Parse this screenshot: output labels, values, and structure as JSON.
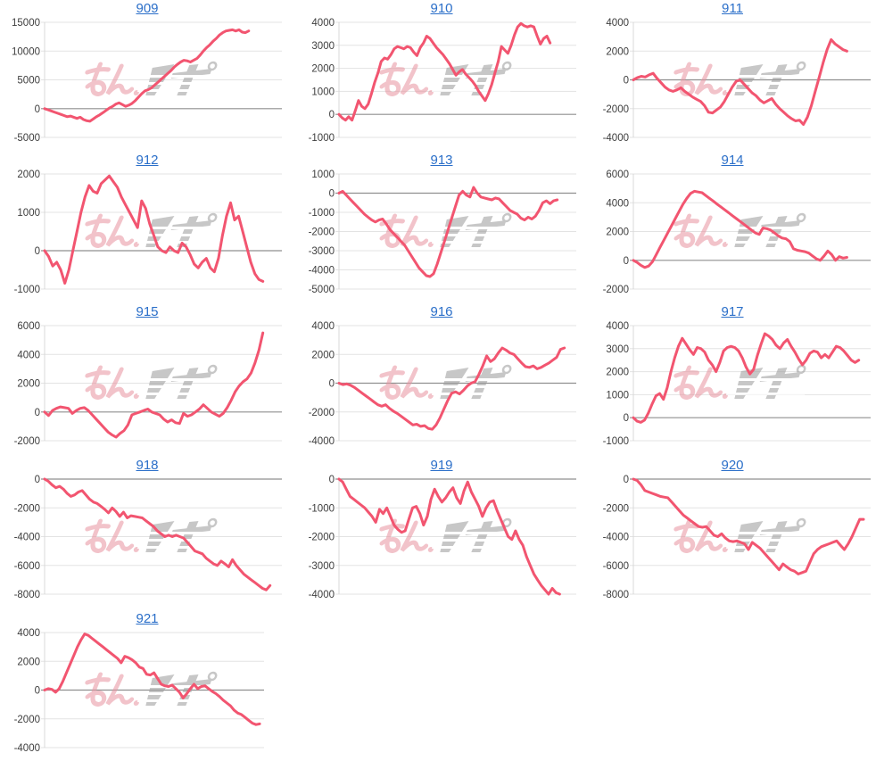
{
  "page": {
    "background": "#ffffff"
  },
  "watermark": {
    "pink_text": "みん",
    "gray_text": "レポ",
    "pink_color": "#e8939f",
    "gray_color": "#9a9a9a",
    "pink_opacity": 0.55,
    "gray_opacity": 0.55
  },
  "style": {
    "line_color": "#f25570",
    "link_color": "#2b6fc9",
    "grid_color": "#e3e3e3",
    "zero_line_color": "#8f8f8f",
    "axis_color": "#d8d8d8",
    "label_color": "#3d3d3d"
  },
  "chart_data": [
    {
      "type": "line",
      "title": "909",
      "ylim": [
        -5000,
        15000
      ],
      "tick_step": 5000,
      "span": 0.86,
      "values": [
        0,
        -200,
        -400,
        -600,
        -800,
        -1000,
        -1200,
        -1400,
        -1300,
        -1500,
        -1700,
        -1500,
        -1900,
        -2100,
        -2200,
        -1800,
        -1400,
        -1100,
        -700,
        -300,
        100,
        400,
        800,
        1000,
        700,
        400,
        600,
        900,
        1400,
        2000,
        2600,
        3100,
        3300,
        3600,
        4100,
        4600,
        5100,
        5600,
        6100,
        6600,
        7200,
        7700,
        8100,
        8400,
        8300,
        8100,
        8400,
        8700,
        9300,
        10000,
        10600,
        11100,
        11700,
        12200,
        12800,
        13200,
        13500,
        13600,
        13700,
        13500,
        13700,
        13300,
        13200,
        13500
      ]
    },
    {
      "type": "line",
      "title": "910",
      "ylim": [
        -1000,
        4000
      ],
      "tick_step": 1000,
      "span": 0.89,
      "values": [
        0,
        -150,
        -250,
        -100,
        -250,
        150,
        600,
        350,
        250,
        450,
        900,
        1400,
        1800,
        2300,
        2450,
        2400,
        2600,
        2850,
        2950,
        2900,
        2850,
        2950,
        2900,
        2700,
        2550,
        2900,
        3100,
        3400,
        3300,
        3100,
        2900,
        2750,
        2600,
        2400,
        2200,
        1950,
        1700,
        1850,
        1950,
        1750,
        1600,
        1450,
        1250,
        1000,
        800,
        600,
        900,
        1300,
        1800,
        2300,
        2950,
        2800,
        2650,
        3000,
        3450,
        3800,
        3950,
        3850,
        3800,
        3850,
        3800,
        3400,
        3050,
        3300,
        3400,
        3100
      ]
    },
    {
      "type": "line",
      "title": "911",
      "ylim": [
        -4000,
        4000
      ],
      "tick_step": 2000,
      "span": 0.9,
      "values": [
        0,
        150,
        250,
        200,
        350,
        450,
        100,
        -200,
        -500,
        -700,
        -800,
        -700,
        -550,
        -800,
        -1000,
        -1200,
        -1350,
        -1500,
        -1800,
        -2250,
        -2300,
        -2100,
        -1900,
        -1500,
        -1000,
        -500,
        -100,
        0,
        -300,
        -600,
        -900,
        -1100,
        -1400,
        -1600,
        -1450,
        -1300,
        -1700,
        -2000,
        -2250,
        -2500,
        -2700,
        -2850,
        -2800,
        -3100,
        -2600,
        -1800,
        -800,
        200,
        1200,
        2100,
        2800,
        2500,
        2300,
        2100,
        2000
      ]
    },
    {
      "type": "line",
      "title": "912",
      "ylim": [
        -1000,
        2000
      ],
      "tick_step": 1000,
      "span": 0.92,
      "values": [
        0,
        -150,
        -400,
        -300,
        -500,
        -850,
        -500,
        0,
        500,
        1000,
        1400,
        1700,
        1550,
        1500,
        1750,
        1850,
        1950,
        1800,
        1650,
        1400,
        1200,
        1000,
        800,
        600,
        1300,
        1100,
        700,
        400,
        100,
        0,
        -50,
        100,
        0,
        -50,
        200,
        100,
        -100,
        -350,
        -450,
        -300,
        -200,
        -450,
        -550,
        -200,
        400,
        900,
        1250,
        800,
        900,
        500,
        100,
        -300,
        -600,
        -750,
        -800
      ]
    },
    {
      "type": "line",
      "title": "913",
      "ylim": [
        -5000,
        1000
      ],
      "tick_step": 1000,
      "span": 0.92,
      "values": [
        0,
        100,
        -100,
        -300,
        -500,
        -700,
        -900,
        -1100,
        -1250,
        -1400,
        -1500,
        -1400,
        -1350,
        -1600,
        -1900,
        -2100,
        -2300,
        -2500,
        -2700,
        -3000,
        -3300,
        -3600,
        -3900,
        -4100,
        -4300,
        -4350,
        -4200,
        -3700,
        -3100,
        -2500,
        -1900,
        -1300,
        -700,
        -100,
        100,
        -100,
        -200,
        300,
        0,
        -200,
        -250,
        -300,
        -350,
        -250,
        -300,
        -500,
        -700,
        -900,
        -1000,
        -1100,
        -1300,
        -1400,
        -1250,
        -1350,
        -1200,
        -900,
        -500,
        -400,
        -550,
        -400,
        -350
      ]
    },
    {
      "type": "line",
      "title": "914",
      "ylim": [
        -2000,
        6000
      ],
      "tick_step": 2000,
      "span": 0.9,
      "values": [
        0,
        -150,
        -350,
        -500,
        -400,
        -100,
        400,
        900,
        1400,
        1900,
        2400,
        2900,
        3400,
        3900,
        4300,
        4650,
        4800,
        4750,
        4700,
        4500,
        4300,
        4100,
        3900,
        3700,
        3500,
        3300,
        3100,
        2900,
        2700,
        2500,
        2300,
        2100,
        1900,
        1800,
        2250,
        2200,
        2100,
        1900,
        1700,
        1550,
        1500,
        1300,
        800,
        700,
        650,
        600,
        500,
        300,
        100,
        0,
        300,
        650,
        400,
        0,
        250,
        150,
        200
      ]
    },
    {
      "type": "line",
      "title": "915",
      "ylim": [
        -2000,
        6000
      ],
      "tick_step": 2000,
      "span": 0.92,
      "values": [
        0,
        -250,
        100,
        250,
        350,
        300,
        250,
        -100,
        100,
        250,
        300,
        100,
        -200,
        -500,
        -800,
        -1100,
        -1400,
        -1600,
        -1750,
        -1500,
        -1300,
        -900,
        -200,
        -100,
        0,
        100,
        200,
        0,
        -100,
        -200,
        -500,
        -700,
        -550,
        -750,
        -800,
        -100,
        -300,
        -200,
        0,
        200,
        500,
        250,
        0,
        -150,
        -300,
        -100,
        300,
        800,
        1400,
        1800,
        2100,
        2300,
        2700,
        3400,
        4300,
        5500
      ]
    },
    {
      "type": "line",
      "title": "916",
      "ylim": [
        -4000,
        4000
      ],
      "tick_step": 2000,
      "span": 0.95,
      "values": [
        0,
        -100,
        -50,
        -150,
        -300,
        -500,
        -700,
        -900,
        -1100,
        -1300,
        -1500,
        -1600,
        -1500,
        -1750,
        -1950,
        -2100,
        -2300,
        -2500,
        -2700,
        -2900,
        -2850,
        -3000,
        -2950,
        -3150,
        -3200,
        -2900,
        -2400,
        -1800,
        -1200,
        -700,
        -600,
        -750,
        -500,
        -200,
        0,
        100,
        600,
        1200,
        1900,
        1500,
        1700,
        2100,
        2450,
        2300,
        2100,
        2000,
        1700,
        1400,
        1150,
        1100,
        1200,
        1000,
        1100,
        1250,
        1400,
        1600,
        1800,
        2350,
        2450
      ]
    },
    {
      "type": "line",
      "title": "917",
      "ylim": [
        -1000,
        4000
      ],
      "tick_step": 1000,
      "span": 0.95,
      "values": [
        0,
        -150,
        -200,
        -100,
        200,
        600,
        950,
        1050,
        800,
        1300,
        2000,
        2600,
        3100,
        3450,
        3200,
        2950,
        2750,
        3050,
        3000,
        2850,
        2500,
        2300,
        2000,
        2400,
        2900,
        3050,
        3100,
        3050,
        2900,
        2600,
        2200,
        1900,
        2100,
        2700,
        3200,
        3650,
        3550,
        3400,
        3150,
        3000,
        3250,
        3400,
        3100,
        2850,
        2550,
        2300,
        2500,
        2800,
        2900,
        2850,
        2600,
        2750,
        2600,
        2850,
        3100,
        3050,
        2900,
        2700,
        2500,
        2400,
        2500
      ]
    },
    {
      "type": "line",
      "title": "918",
      "ylim": [
        -8000,
        0
      ],
      "tick_step": 2000,
      "span": 0.95,
      "values": [
        0,
        -150,
        -400,
        -600,
        -500,
        -700,
        -1000,
        -1200,
        -1100,
        -900,
        -800,
        -1100,
        -1400,
        -1600,
        -1700,
        -1900,
        -2100,
        -2350,
        -2000,
        -2250,
        -2600,
        -2300,
        -2700,
        -2550,
        -2600,
        -2650,
        -2700,
        -2900,
        -3100,
        -3300,
        -3600,
        -3800,
        -4000,
        -3900,
        -4000,
        -3900,
        -4000,
        -4100,
        -4400,
        -4700,
        -5000,
        -5100,
        -5200,
        -5500,
        -5700,
        -5900,
        -6000,
        -5700,
        -5900,
        -6100,
        -5600,
        -6000,
        -6300,
        -6600,
        -6800,
        -7000,
        -7200,
        -7400,
        -7600,
        -7700,
        -7400
      ]
    },
    {
      "type": "line",
      "title": "919",
      "ylim": [
        -4000,
        0
      ],
      "tick_step": 1000,
      "span": 0.93,
      "values": [
        0,
        -100,
        -350,
        -600,
        -700,
        -800,
        -900,
        -1000,
        -1150,
        -1300,
        -1500,
        -1050,
        -1200,
        -1000,
        -1300,
        -1600,
        -1750,
        -1850,
        -1800,
        -1400,
        -1000,
        -950,
        -1200,
        -1600,
        -1300,
        -700,
        -350,
        -600,
        -800,
        -650,
        -450,
        -300,
        -650,
        -850,
        -400,
        -100,
        -450,
        -700,
        -950,
        -1300,
        -1000,
        -800,
        -750,
        -1100,
        -1400,
        -1700,
        -2000,
        -2100,
        -1800,
        -2100,
        -2300,
        -2700,
        -3000,
        -3300,
        -3500,
        -3700,
        -3850,
        -4000,
        -3800,
        -3950,
        -4000
      ]
    },
    {
      "type": "line",
      "title": "920",
      "ylim": [
        -8000,
        0
      ],
      "tick_step": 2000,
      "span": 0.97,
      "values": [
        0,
        -100,
        -400,
        -800,
        -900,
        -1000,
        -1100,
        -1200,
        -1250,
        -1300,
        -1600,
        -1900,
        -2200,
        -2500,
        -2700,
        -2900,
        -3100,
        -3300,
        -3350,
        -3300,
        -3600,
        -3900,
        -4000,
        -3800,
        -4100,
        -4300,
        -4350,
        -4300,
        -4400,
        -4500,
        -4900,
        -4400,
        -4600,
        -4800,
        -5100,
        -5400,
        -5700,
        -6000,
        -6300,
        -5900,
        -6100,
        -6300,
        -6400,
        -6600,
        -6500,
        -6400,
        -5800,
        -5200,
        -4900,
        -4700,
        -4600,
        -4500,
        -4400,
        -4300,
        -4600,
        -4900,
        -4500,
        -4000,
        -3400,
        -2800,
        -2800
      ]
    },
    {
      "type": "line",
      "title": "921",
      "ylim": [
        -4000,
        4000
      ],
      "tick_step": 2000,
      "span": 0.98,
      "grid_right": 296,
      "values": [
        0,
        100,
        50,
        -150,
        100,
        600,
        1200,
        1800,
        2400,
        3000,
        3500,
        3900,
        3800,
        3600,
        3400,
        3200,
        3000,
        2800,
        2600,
        2400,
        2200,
        1900,
        2350,
        2250,
        2100,
        1900,
        1600,
        1500,
        1100,
        1050,
        1200,
        800,
        400,
        300,
        250,
        350,
        100,
        -150,
        -550,
        -250,
        100,
        400,
        100,
        250,
        300,
        100,
        -100,
        -250,
        -450,
        -700,
        -900,
        -1100,
        -1400,
        -1600,
        -1700,
        -1900,
        -2100,
        -2300,
        -2400,
        -2350
      ]
    }
  ]
}
